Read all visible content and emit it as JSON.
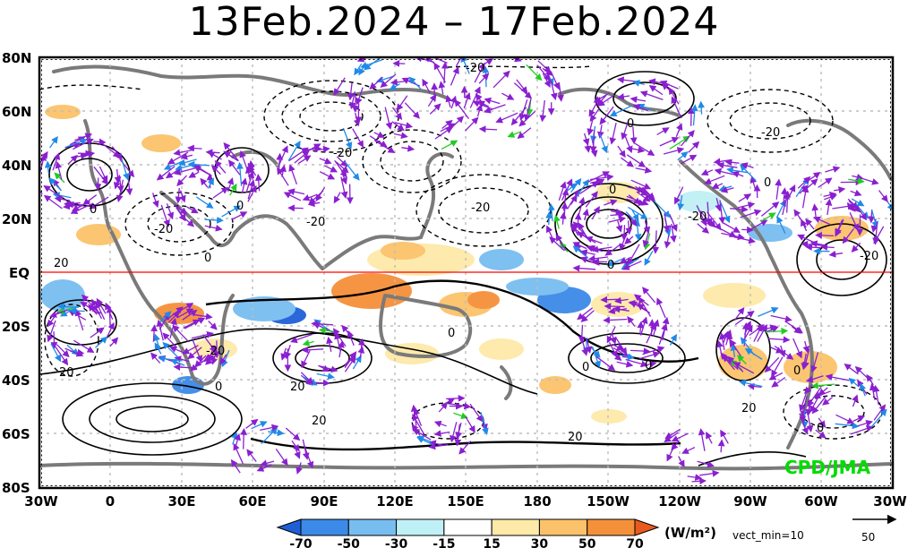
{
  "title": "13Feb.2024 – 17Feb.2024",
  "lat_labels": [
    "80N",
    "60N",
    "40N",
    "20N",
    "EQ",
    "20S",
    "40S",
    "60S",
    "80S"
  ],
  "lon_labels": [
    "30W",
    "0",
    "30E",
    "60E",
    "90E",
    "120E",
    "150E",
    "180",
    "150W",
    "120W",
    "90W",
    "60W",
    "30W"
  ],
  "contour_labels": [
    "-20",
    "-20",
    "-20",
    "-20",
    "-20",
    "-20",
    "-20",
    "20",
    "0",
    "0",
    "0",
    "0",
    "0",
    "0",
    "0",
    "0",
    "0",
    "0",
    "20",
    "20",
    "20",
    "20",
    "20",
    "0",
    "0",
    "0",
    "-20",
    "-20"
  ],
  "colorbar": {
    "labels": [
      "-70",
      "-50",
      "-30",
      "-15",
      "15",
      "30",
      "50",
      "70"
    ],
    "colors": [
      "#1f5fd6",
      "#3c8ae8",
      "#78bdf0",
      "#bff0f5",
      "#ffffff",
      "#fde9a8",
      "#fbc26a",
      "#f5903a",
      "#ea5a1e"
    ],
    "unit": "(W/m²)"
  },
  "vector": {
    "min_label": "vect_min=10",
    "reference_value": "50"
  },
  "credit": "CPD/JMA",
  "colors": {
    "equator_line": "#ff0000",
    "coastline": "#7a7a7a",
    "vector_main": "#8a1fd0",
    "vector_strong": "#1f8ae8",
    "vector_strongest": "#22cc22"
  }
}
